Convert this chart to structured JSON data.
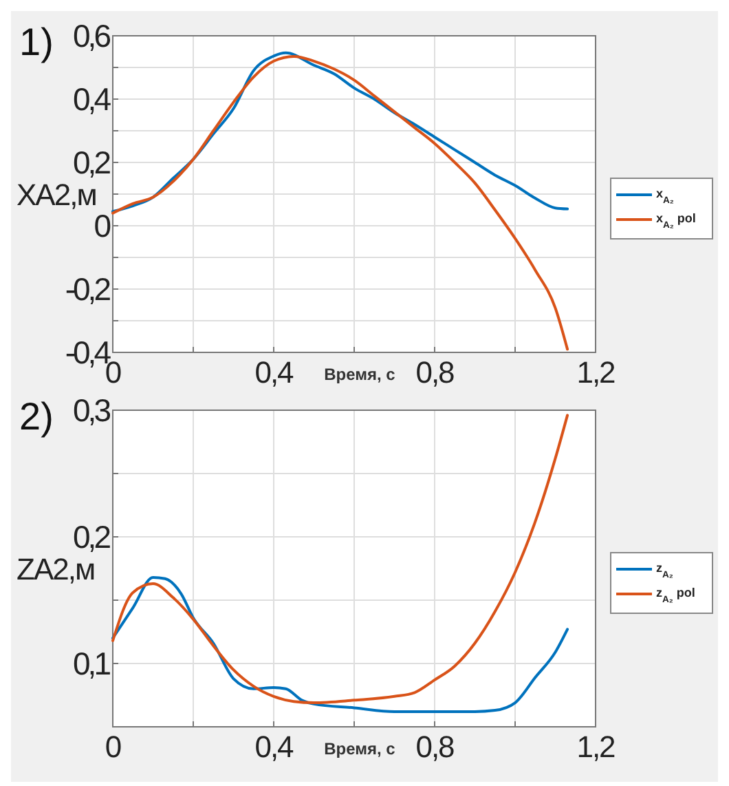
{
  "chart_data": [
    {
      "type": "line",
      "title": "1)",
      "xlabel": "Время, с",
      "ylabel": "XA2,м",
      "xlim": [
        0,
        1.2
      ],
      "ylim": [
        -0.4,
        0.6
      ],
      "xticks": [
        0,
        {
          "value": 0.2,
          "label": null
        },
        {
          "value": 0.4,
          "label": "0,4"
        },
        {
          "value": 0.6,
          "label": null
        },
        {
          "value": 0.8,
          "label": "0,8"
        },
        {
          "value": 1,
          "label": null
        },
        {
          "value": 1.2,
          "label": "1,2"
        }
      ],
      "yticks": [
        {
          "value": -0.4,
          "label": "-0,4"
        },
        {
          "value": -0.3,
          "label": null
        },
        {
          "value": -0.2,
          "label": "-0,2"
        },
        {
          "value": -0.1,
          "label": null
        },
        0,
        {
          "value": 0.1,
          "label": null
        },
        {
          "value": 0.2,
          "label": "0,2"
        },
        {
          "value": 0.3,
          "label": null
        },
        {
          "value": 0.4,
          "label": "0,4"
        },
        {
          "value": 0.5,
          "label": null
        },
        {
          "value": 0.6,
          "label": "0,6"
        }
      ],
      "grid": true,
      "legend": "right",
      "series": [
        {
          "name": "x$_{A₂}$",
          "color": "#0072bd",
          "x": [
            0,
            0.05,
            0.1,
            0.15,
            0.2,
            0.25,
            0.3,
            0.35,
            0.4,
            0.43,
            0.5,
            0.55,
            0.6,
            0.65,
            0.7,
            0.75,
            0.8,
            0.85,
            0.9,
            0.95,
            1,
            1.05,
            1.1,
            1.13
          ],
          "values": [
            0.045,
            0.063,
            0.09,
            0.15,
            0.21,
            0.29,
            0.37,
            0.49,
            0.536,
            0.546,
            0.507,
            0.48,
            0.435,
            0.4,
            0.357,
            0.32,
            0.28,
            0.24,
            0.2,
            0.16,
            0.127,
            0.087,
            0.056,
            0.053
          ]
        },
        {
          "name": "x$_{A₂}$ pol",
          "color": "#d95319",
          "x": [
            0,
            0.05,
            0.1,
            0.15,
            0.2,
            0.25,
            0.3,
            0.35,
            0.4,
            0.45,
            0.5,
            0.55,
            0.6,
            0.65,
            0.7,
            0.75,
            0.8,
            0.85,
            0.9,
            0.95,
            1,
            1.05,
            1.1,
            1.13
          ],
          "values": [
            0.04,
            0.07,
            0.09,
            0.14,
            0.21,
            0.3,
            0.39,
            0.47,
            0.52,
            0.535,
            0.52,
            0.495,
            0.46,
            0.41,
            0.36,
            0.31,
            0.26,
            0.2,
            0.135,
            0.05,
            -0.04,
            -0.14,
            -0.26,
            -0.39
          ]
        }
      ]
    },
    {
      "type": "line",
      "title": "2)",
      "xlabel": "Время, с",
      "ylabel": "ZA2,м",
      "xlim": [
        0,
        1.2
      ],
      "ylim": [
        0.05,
        0.3
      ],
      "xticks": [
        0,
        {
          "value": 0.2,
          "label": null
        },
        {
          "value": 0.4,
          "label": "0,4"
        },
        {
          "value": 0.6,
          "label": null
        },
        {
          "value": 0.8,
          "label": "0,8"
        },
        {
          "value": 1,
          "label": null
        },
        {
          "value": 1.2,
          "label": "1,2"
        }
      ],
      "yticks": [
        {
          "value": 0.1,
          "label": "0,1"
        },
        {
          "value": 0.15,
          "label": null
        },
        {
          "value": 0.2,
          "label": "0,2"
        },
        {
          "value": 0.25,
          "label": null
        },
        {
          "value": 0.3,
          "label": "0,3"
        }
      ],
      "grid": true,
      "legend": "right",
      "series": [
        {
          "name": "z$_{A₂}$",
          "color": "#0072bd",
          "x": [
            0,
            0.05,
            0.1,
            0.13,
            0.17,
            0.2,
            0.25,
            0.3,
            0.35,
            0.4,
            0.43,
            0.47,
            0.5,
            0.6,
            0.7,
            0.8,
            0.9,
            0.95,
            1,
            1.05,
            1.1,
            1.13
          ],
          "values": [
            0.12,
            0.144,
            0.168,
            0.167,
            0.155,
            0.136,
            0.116,
            0.088,
            0.08,
            0.081,
            0.08,
            0.071,
            0.068,
            0.065,
            0.062,
            0.062,
            0.062,
            0.063,
            0.069,
            0.089,
            0.109,
            0.127
          ]
        },
        {
          "name": "z$_{A₂}$ pol",
          "color": "#d95319",
          "x": [
            0,
            0.05,
            0.1,
            0.15,
            0.2,
            0.25,
            0.3,
            0.35,
            0.4,
            0.45,
            0.5,
            0.6,
            0.7,
            0.75,
            0.8,
            0.85,
            0.9,
            0.95,
            1,
            1.05,
            1.1,
            1.13
          ],
          "values": [
            0.118,
            0.156,
            0.163,
            0.152,
            0.135,
            0.114,
            0.095,
            0.082,
            0.074,
            0.07,
            0.069,
            0.071,
            0.074,
            0.077,
            0.087,
            0.098,
            0.116,
            0.141,
            0.172,
            0.212,
            0.262,
            0.296
          ]
        }
      ]
    }
  ]
}
